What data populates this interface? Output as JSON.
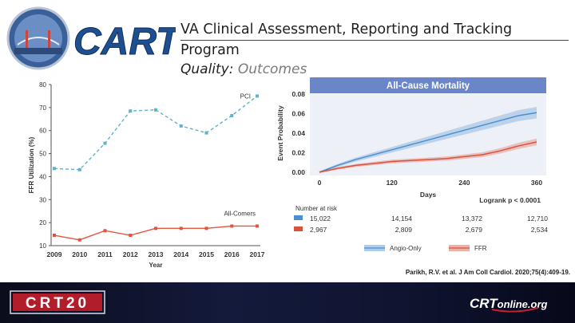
{
  "header": {
    "logo_text": "CART",
    "title_line1": "VA Clinical Assessment, Reporting and Tracking",
    "title_line2": "Program",
    "subtitle_prefix": "Quality:",
    "subtitle_accent": "Outcomes"
  },
  "colors": {
    "pci": "#5fb3c9",
    "allcomers": "#e2553d",
    "angio": "#4a8fd0",
    "ffr": "#d9533c",
    "panel_header": "#6b86c8"
  },
  "chart_data": [
    {
      "type": "line",
      "title": "",
      "xlabel": "Year",
      "ylabel": "FFR Utilization (%)",
      "ylim": [
        10,
        80
      ],
      "yticks": [
        10,
        20,
        30,
        40,
        50,
        60,
        70,
        80
      ],
      "categories": [
        "2009",
        "2010",
        "2011",
        "2012",
        "2013",
        "2014",
        "2015",
        "2016",
        "2017"
      ],
      "series": [
        {
          "name": "PCI",
          "values": [
            43.5,
            43,
            54.5,
            68.5,
            69,
            62,
            59,
            66.5,
            75
          ]
        },
        {
          "name": "All-Comers",
          "values": [
            14.5,
            12.5,
            16.5,
            14.5,
            17.5,
            17.5,
            17.5,
            18.5,
            18.5
          ]
        }
      ],
      "grid": false
    },
    {
      "type": "line",
      "title": "All-Cause Mortality",
      "xlabel": "Days",
      "ylabel": "Event Probability",
      "xlim": [
        0,
        360
      ],
      "ylim": [
        0,
        0.08
      ],
      "xticks": [
        "0",
        "120",
        "240",
        "360"
      ],
      "yticks": [
        "0.00",
        "0.02",
        "0.04",
        "0.06",
        "0.08"
      ],
      "series": [
        {
          "name": "Angio-Only",
          "x": [
            0,
            30,
            60,
            90,
            120,
            150,
            180,
            210,
            240,
            270,
            300,
            330,
            360
          ],
          "values": [
            0,
            0.007,
            0.013,
            0.018,
            0.023,
            0.028,
            0.033,
            0.038,
            0.043,
            0.048,
            0.053,
            0.058,
            0.061
          ]
        },
        {
          "name": "FFR",
          "x": [
            0,
            30,
            60,
            90,
            120,
            150,
            180,
            210,
            240,
            270,
            300,
            330,
            360
          ],
          "values": [
            0,
            0.004,
            0.007,
            0.009,
            0.011,
            0.012,
            0.013,
            0.014,
            0.016,
            0.018,
            0.022,
            0.027,
            0.031
          ]
        }
      ],
      "logrank": "Logrank p < 0.0001",
      "risk_table": {
        "label": "Number at risk",
        "rows": [
          {
            "name": "Angio-Only",
            "values": [
              "15,022",
              "14,154",
              "13,372",
              "12,710"
            ]
          },
          {
            "name": "FFR",
            "values": [
              "2,967",
              "2,809",
              "2,679",
              "2,534"
            ]
          }
        ]
      },
      "legend": [
        "Angio-Only",
        "FFR"
      ],
      "citation": "Parikh, R.V. et al. J Am Coll Cardiol. 2020;75(4):409-19."
    }
  ],
  "footer": {
    "left_logo": "CRT20",
    "right_logo_brand": "CRT",
    "right_logo_suffix": "online.org"
  }
}
